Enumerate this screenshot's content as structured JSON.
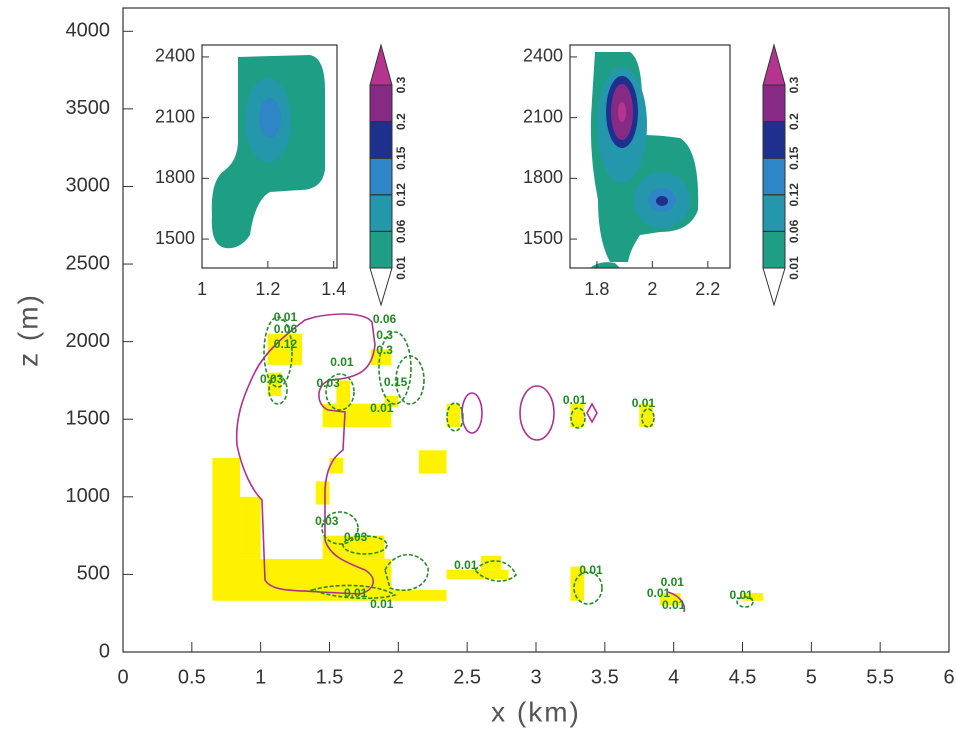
{
  "chart_data": [
    {
      "type": "contour",
      "xlabel": "x (km)",
      "ylabel": "z (m)",
      "xlim": [
        0,
        6
      ],
      "ylim": [
        0,
        4150
      ],
      "xticks": [
        0,
        0.5,
        1,
        1.5,
        2,
        2.5,
        3,
        3.5,
        4,
        4.5,
        5,
        5.5,
        6
      ],
      "yticks": [
        0,
        500,
        1000,
        1500,
        2000,
        2500,
        3000,
        3500,
        4000
      ],
      "cell_color": "#fff200",
      "cells": [
        [
          0.65,
          0.85,
          450,
          1250
        ],
        [
          0.85,
          1.0,
          600,
          1000
        ],
        [
          0.65,
          1.95,
          330,
          600
        ],
        [
          1.95,
          2.35,
          330,
          400
        ],
        [
          1.45,
          1.9,
          600,
          750
        ],
        [
          1.5,
          1.6,
          1150,
          1250
        ],
        [
          1.4,
          1.5,
          950,
          1100
        ],
        [
          2.15,
          2.35,
          1150,
          1300
        ],
        [
          1.55,
          1.65,
          1600,
          1750
        ],
        [
          1.45,
          1.95,
          1450,
          1600
        ],
        [
          1.9,
          2.0,
          1580,
          1650
        ],
        [
          2.35,
          2.45,
          1450,
          1600
        ],
        [
          1.05,
          1.3,
          1850,
          2050
        ],
        [
          1.05,
          1.15,
          1650,
          1800
        ],
        [
          1.8,
          1.95,
          1850,
          1950
        ],
        [
          2.35,
          2.8,
          470,
          530
        ],
        [
          2.6,
          2.75,
          530,
          620
        ],
        [
          3.25,
          3.35,
          330,
          550
        ],
        [
          3.25,
          3.35,
          1450,
          1600
        ],
        [
          3.75,
          3.85,
          1450,
          1600
        ],
        [
          3.9,
          4.05,
          300,
          380
        ],
        [
          4.5,
          4.65,
          330,
          380
        ]
      ],
      "contour_labels": [
        {
          "value": 0.01,
          "x": 2.49,
          "z": 555
        },
        {
          "value": 0.01,
          "x": 3.4,
          "z": 523
        },
        {
          "value": 0.01,
          "x": 3.99,
          "z": 445
        },
        {
          "value": 0.01,
          "x": 3.89,
          "z": 374
        },
        {
          "value": 0.01,
          "x": 4.0,
          "z": 297
        },
        {
          "value": 0.01,
          "x": 4.49,
          "z": 361
        },
        {
          "value": 0.01,
          "x": 1.69,
          "z": 374
        },
        {
          "value": 0.01,
          "x": 1.88,
          "z": 303
        },
        {
          "value": 0.03,
          "x": 1.48,
          "z": 839
        },
        {
          "value": 0.03,
          "x": 1.69,
          "z": 735
        },
        {
          "value": 0.01,
          "x": 1.59,
          "z": 1865
        },
        {
          "value": 0.03,
          "x": 1.49,
          "z": 1729
        },
        {
          "value": 0.01,
          "x": 1.88,
          "z": 1568
        },
        {
          "value": 0.03,
          "x": 1.08,
          "z": 1755
        },
        {
          "value": 0.12,
          "x": 1.18,
          "z": 1981
        },
        {
          "value": 0.06,
          "x": 1.18,
          "z": 2077
        },
        {
          "value": 0.01,
          "x": 1.18,
          "z": 2155
        },
        {
          "value": 0.06,
          "x": 1.9,
          "z": 2142
        },
        {
          "value": 0.3,
          "x": 1.9,
          "z": 2039
        },
        {
          "value": 0.3,
          "x": 1.9,
          "z": 1942
        },
        {
          "value": 0.15,
          "x": 1.98,
          "z": 1735
        },
        {
          "value": 0.01,
          "x": 3.28,
          "z": 1619
        },
        {
          "value": 0.01,
          "x": 3.78,
          "z": 1600
        }
      ]
    },
    {
      "type": "contour",
      "xlim": [
        1,
        1.41
      ],
      "ylim": [
        1357,
        2459
      ],
      "xticks": [
        1,
        1.2,
        1.4
      ],
      "yticks": [
        1500,
        1800,
        2100,
        2400
      ],
      "colorbar": {
        "levels": [
          0.01,
          0.06,
          0.12,
          0.15,
          0.2,
          0.3
        ],
        "colors": [
          "#ffffff",
          "#1f9e86",
          "#2497ad",
          "#2f86c6",
          "#1e2f8e",
          "#862a86",
          "#b5348f"
        ]
      }
    },
    {
      "type": "contour",
      "xlim": [
        1.703,
        2.28
      ],
      "ylim": [
        1357,
        2459
      ],
      "xticks": [
        1.8,
        2,
        2.2
      ],
      "yticks": [
        1500,
        1800,
        2100,
        2400
      ],
      "colorbar": {
        "levels": [
          0.01,
          0.06,
          0.12,
          0.15,
          0.2,
          0.3
        ],
        "colors": [
          "#ffffff",
          "#1f9e86",
          "#2497ad",
          "#2f86c6",
          "#1e2f8e",
          "#862a86",
          "#b5348f"
        ]
      }
    }
  ]
}
